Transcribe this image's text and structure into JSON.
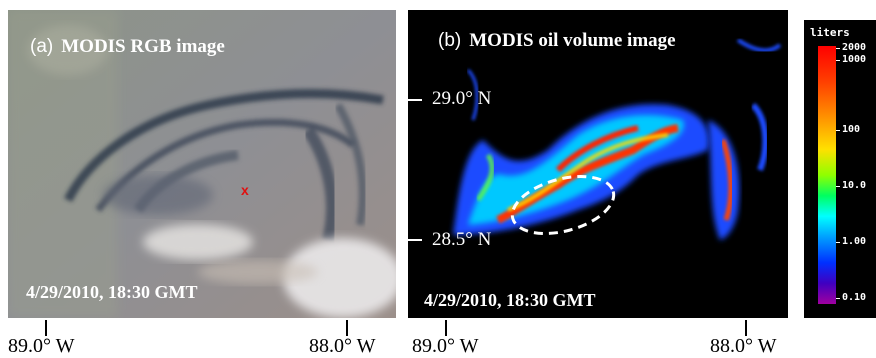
{
  "panel_a": {
    "letter": "(a)",
    "title": "MODIS RGB image",
    "date": "4/29/2010, 18:30 GMT",
    "marker": "x"
  },
  "panel_b": {
    "letter": "(b)",
    "title": "MODIS oil volume image",
    "date": "4/29/2010, 18:30 GMT",
    "lat_top": "29.0° N",
    "lat_bottom": "28.5° N"
  },
  "axis": {
    "a_left": "89.0° W",
    "a_right": "88.0° W",
    "b_left": "89.0° W",
    "b_right": "88.0° W"
  },
  "colorbar": {
    "unit": "liters",
    "labels": [
      "2000",
      "1000",
      "100",
      "10.0",
      "1.00",
      "0.10"
    ]
  }
}
